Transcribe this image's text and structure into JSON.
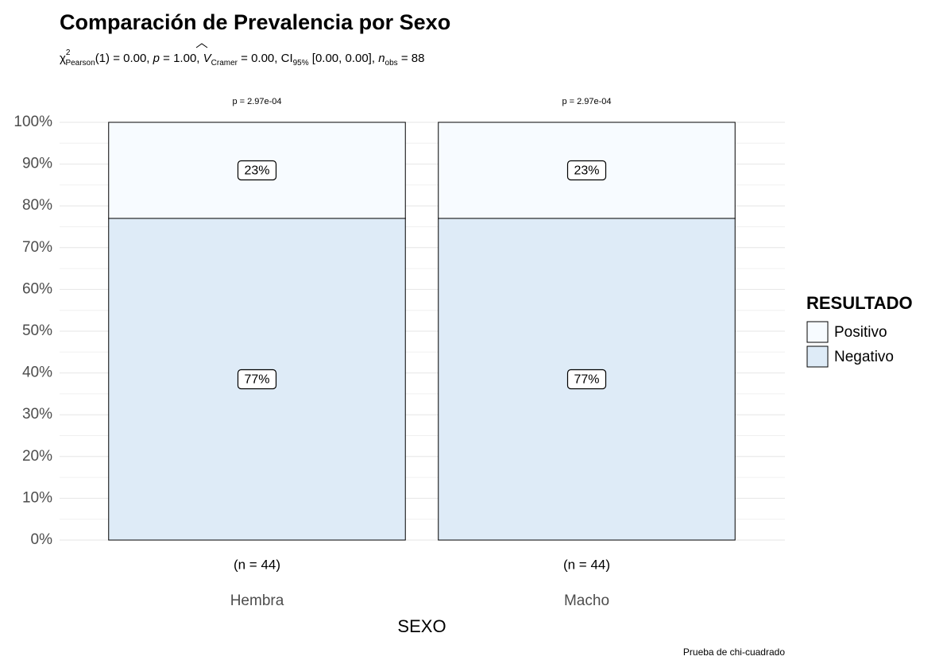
{
  "chart_data": {
    "type": "stacked_bar",
    "title": "Comparación de Prevalencia por Sexo",
    "subtitle_parts": [
      "χ",
      "2",
      "Pearson",
      "(1) = 0.00, ",
      "p",
      " = 1.00, ",
      "V",
      "Cramer",
      " = 0.00, CI",
      "95%",
      " [0.00, 0.00], ",
      "n",
      "obs",
      " = 88"
    ],
    "categories": [
      "Hembra",
      "Macho"
    ],
    "count_labels": [
      "(n = 44)",
      "(n = 44)"
    ],
    "annotations": [
      "p = 2.97e-04",
      "p = 2.97e-04"
    ],
    "series": [
      {
        "name": "Positivo",
        "color": "#f7fbff",
        "values": [
          23,
          23
        ],
        "value_labels": [
          "23%",
          "23%"
        ]
      },
      {
        "name": "Negativo",
        "color": "#deebf7",
        "values": [
          77,
          77
        ],
        "value_labels": [
          "77%",
          "77%"
        ]
      }
    ],
    "ylim": [
      0,
      100
    ],
    "yticks": [
      {
        "value": 0,
        "label": "0%"
      },
      {
        "value": 10,
        "label": "10%"
      },
      {
        "value": 20,
        "label": "20%"
      },
      {
        "value": 30,
        "label": "30%"
      },
      {
        "value": 40,
        "label": "40%"
      },
      {
        "value": 50,
        "label": "50%"
      },
      {
        "value": 60,
        "label": "60%"
      },
      {
        "value": 70,
        "label": "70%"
      },
      {
        "value": 80,
        "label": "80%"
      },
      {
        "value": 90,
        "label": "90%"
      },
      {
        "value": 100,
        "label": "100%"
      }
    ],
    "yminorticks": [
      5,
      15,
      25,
      35,
      45,
      55,
      65,
      75,
      85,
      95
    ],
    "grid": true,
    "xlabel": "SEXO",
    "legend_title": "RESULTADO",
    "legend_position": "right",
    "caption": "Prueba de chi-cuadrado"
  }
}
